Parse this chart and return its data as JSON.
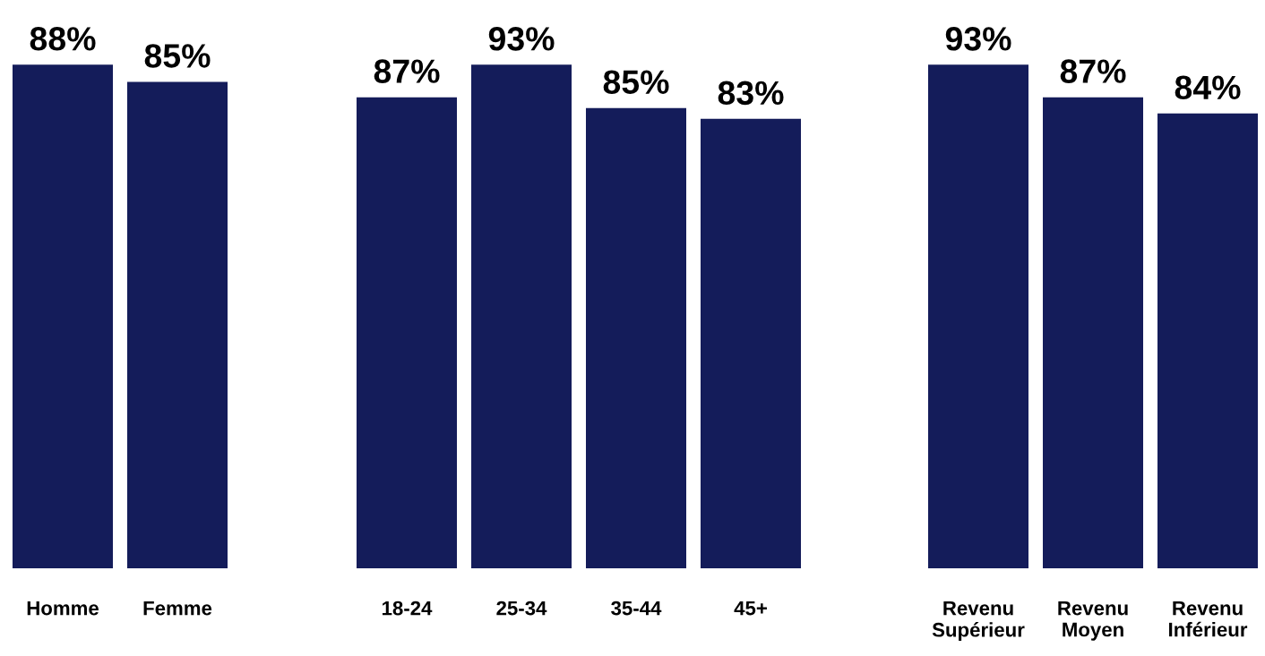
{
  "chart_data": [
    {
      "type": "bar",
      "categories": [
        "Homme",
        "Femme"
      ],
      "values": [
        88,
        85
      ],
      "value_labels": [
        "88%",
        "85%"
      ],
      "color": "#141c5a",
      "tick_labels": "x",
      "grid": false,
      "legend": false
    },
    {
      "type": "bar",
      "categories": [
        "18-24",
        "25-34",
        "35-44",
        "45+"
      ],
      "values": [
        87,
        93,
        85,
        83
      ],
      "value_labels": [
        "87%",
        "93%",
        "85%",
        "83%"
      ],
      "color": "#141c5a",
      "tick_labels": "x",
      "grid": false,
      "legend": false
    },
    {
      "type": "bar",
      "categories": [
        "Revenu\nSupérieur",
        "Revenu\nMoyen",
        "Revenu\nInférieur"
      ],
      "values": [
        93,
        87,
        84
      ],
      "value_labels": [
        "93%",
        "87%",
        "84%"
      ],
      "color": "#141c5a",
      "tick_labels": "x",
      "grid": false,
      "legend": false
    }
  ]
}
